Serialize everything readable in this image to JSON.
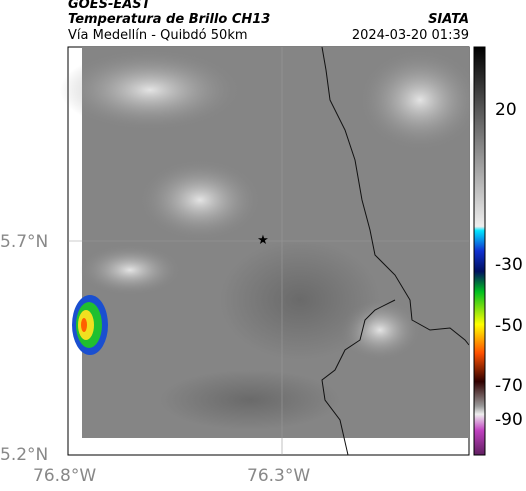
{
  "header": {
    "source": "GOES-EAST",
    "product": "Temperatura de Brillo CH13",
    "region": "Vía Medellín - Quibdó 50km",
    "agency": "SIATA",
    "timestamp": "2024-03-20 01:39"
  },
  "map": {
    "lat_labels": [
      "5.7°N",
      "5.2°N"
    ],
    "lon_labels": [
      "76.8°W",
      "76.3°W"
    ]
  },
  "colorbar": {
    "ticks": [
      20,
      -30,
      -50,
      -70,
      -90
    ]
  }
}
